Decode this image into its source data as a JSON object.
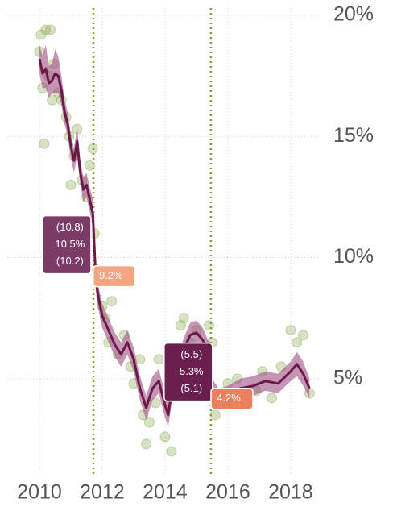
{
  "chart_data": {
    "type": "line",
    "xlim": [
      2009.0,
      2018.9
    ],
    "ylim": [
      1,
      20.3
    ],
    "xticks": [
      2010,
      2012,
      2014,
      2016,
      2018
    ],
    "yticks": [
      {
        "value": 5,
        "label": "5%"
      },
      {
        "value": 10,
        "label": "10%"
      },
      {
        "value": 15,
        "label": "15%"
      },
      {
        "value": 20,
        "label": "20%"
      }
    ],
    "grid": true,
    "vlines": [
      2011.72,
      2015.46
    ],
    "vline_color": "#8a9a3a",
    "series": [
      {
        "type": "scatter",
        "color": "#7a9e3a",
        "x": [
          2010.0,
          2010.05,
          2010.1,
          2010.2,
          2010.3,
          2010.35,
          2010.45,
          2010.6,
          2010.7,
          2010.85,
          2010.95,
          2011.1,
          2011.2,
          2011.35,
          2011.5,
          2011.6,
          2011.7,
          2011.75,
          2011.85,
          2012.0,
          2012.1,
          2012.3,
          2012.5,
          2012.7,
          2012.9,
          2013.0,
          2013.2,
          2013.3,
          2013.5,
          2013.7,
          2013.8,
          2014.0,
          2014.1,
          2014.3,
          2014.5,
          2014.6,
          2014.8,
          2015.0,
          2015.2,
          2015.4,
          2015.5,
          2015.6,
          2015.8,
          2016.0,
          2016.3,
          2016.6,
          2016.9,
          2017.1,
          2017.4,
          2017.7,
          2018.0,
          2018.2,
          2018.4,
          2018.6,
          2010.15,
          2010.4,
          2011.0,
          2012.2,
          2013.4,
          2014.2
        ],
        "values": [
          18.5,
          19.2,
          17.0,
          19.4,
          17.5,
          19.4,
          18.0,
          16.8,
          16.5,
          15.8,
          15.0,
          14.2,
          15.3,
          13.2,
          12.5,
          13.8,
          14.5,
          11.0,
          9.5,
          8.0,
          7.5,
          8.2,
          6.0,
          6.8,
          5.5,
          4.8,
          5.8,
          3.5,
          3.2,
          4.0,
          5.8,
          2.6,
          4.5,
          6.2,
          7.2,
          7.5,
          6.5,
          7.0,
          5.8,
          7.2,
          6.5,
          3.5,
          4.0,
          4.8,
          5.0,
          4.3,
          4.5,
          5.3,
          4.2,
          5.5,
          7.0,
          6.5,
          6.8,
          4.4,
          14.7,
          16.5,
          13.0,
          6.5,
          2.3,
          2.0
        ]
      },
      {
        "type": "ribbon",
        "color": "#9e4f85",
        "x": [
          2010.0,
          2010.1,
          2010.2,
          2010.3,
          2010.4,
          2010.5,
          2010.6,
          2010.7,
          2010.8,
          2010.9,
          2011.0,
          2011.1,
          2011.2,
          2011.3,
          2011.4,
          2011.5,
          2011.6,
          2011.7,
          2011.8,
          2011.9,
          2012.0,
          2012.2,
          2012.4,
          2012.6,
          2012.8,
          2013.0,
          2013.2,
          2013.4,
          2013.6,
          2013.8,
          2014.0,
          2014.1,
          2014.2,
          2014.4,
          2014.6,
          2014.8,
          2015.0,
          2015.2,
          2015.4,
          2015.5,
          2015.7,
          2016.0,
          2016.4,
          2016.8,
          2017.2,
          2017.6,
          2018.0,
          2018.2,
          2018.4,
          2018.6
        ],
        "lower": [
          17.6,
          17.0,
          17.0,
          16.6,
          16.8,
          16.8,
          16.8,
          16.3,
          15.5,
          15.0,
          14.1,
          13.5,
          14.2,
          13.0,
          12.3,
          12.5,
          11.9,
          11.2,
          8.5,
          7.7,
          7.1,
          6.5,
          5.9,
          5.5,
          6.0,
          5.3,
          4.1,
          3.3,
          4.1,
          4.4,
          3.4,
          3.0,
          3.9,
          4.9,
          5.7,
          6.3,
          6.4,
          6.1,
          5.5,
          4.0,
          3.8,
          3.9,
          4.2,
          4.3,
          4.5,
          4.4,
          4.9,
          5.1,
          4.7,
          4.2
        ],
        "upper": [
          18.8,
          18.3,
          18.8,
          17.9,
          18.0,
          18.6,
          18.3,
          17.5,
          16.5,
          16.0,
          15.1,
          14.5,
          15.4,
          14.0,
          13.3,
          13.5,
          12.9,
          12.4,
          9.5,
          8.7,
          8.1,
          7.5,
          6.9,
          6.5,
          7.0,
          6.3,
          5.1,
          4.3,
          5.1,
          5.4,
          4.4,
          4.0,
          4.9,
          5.9,
          6.7,
          7.3,
          7.4,
          7.1,
          6.5,
          5.0,
          4.6,
          4.7,
          5.0,
          5.1,
          5.3,
          5.2,
          5.7,
          6.1,
          5.7,
          5.0
        ]
      },
      {
        "type": "line",
        "color": "#6b1a45",
        "x": [
          2010.0,
          2010.1,
          2010.2,
          2010.3,
          2010.4,
          2010.5,
          2010.6,
          2010.7,
          2010.8,
          2010.9,
          2011.0,
          2011.1,
          2011.2,
          2011.3,
          2011.4,
          2011.5,
          2011.6,
          2011.7,
          2011.8,
          2011.9,
          2012.0,
          2012.2,
          2012.4,
          2012.6,
          2012.8,
          2013.0,
          2013.2,
          2013.4,
          2013.6,
          2013.8,
          2014.0,
          2014.1,
          2014.2,
          2014.4,
          2014.6,
          2014.8,
          2015.0,
          2015.2,
          2015.4,
          2015.5,
          2015.7,
          2016.0,
          2016.4,
          2016.8,
          2017.2,
          2017.6,
          2018.0,
          2018.2,
          2018.4,
          2018.6
        ],
        "values": [
          18.2,
          17.6,
          17.8,
          17.2,
          17.3,
          17.6,
          17.5,
          16.9,
          16.0,
          15.5,
          14.6,
          14.0,
          14.8,
          13.5,
          12.8,
          13.0,
          12.4,
          11.8,
          9.0,
          8.2,
          7.6,
          7.0,
          6.4,
          6.0,
          6.5,
          5.8,
          4.6,
          3.8,
          4.6,
          4.9,
          3.9,
          3.5,
          4.4,
          5.4,
          6.2,
          6.8,
          6.9,
          6.6,
          6.0,
          4.5,
          4.2,
          4.3,
          4.6,
          4.7,
          4.9,
          4.8,
          5.3,
          5.6,
          5.2,
          4.6
        ]
      }
    ],
    "annotations": [
      {
        "x": 2010.87,
        "y": 10.53,
        "color": "#7a3b66",
        "lines": [
          "(10.8)",
          "10.5%",
          "(10.2)"
        ]
      },
      {
        "x": 2012.38,
        "y": 9.23,
        "color": "#f4a582",
        "lines": [
          "9.2%"
        ]
      },
      {
        "x": 2014.74,
        "y": 5.27,
        "color": "#6b1f4f",
        "lines": [
          "(5.5)",
          "5.3%",
          "(5.1)"
        ]
      },
      {
        "x": 2016.13,
        "y": 4.17,
        "color": "#e9805e",
        "lines": [
          "4.2%"
        ]
      }
    ]
  }
}
